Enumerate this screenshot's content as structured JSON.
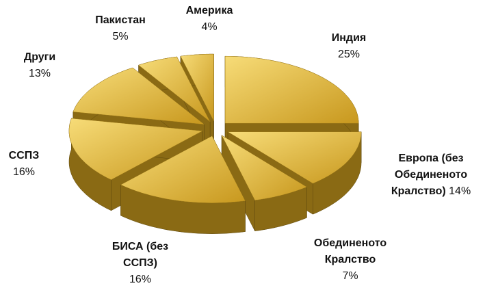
{
  "chart_data": {
    "type": "pie3d",
    "categories": [
      "Индия",
      "Европа (без Обединеното Кралство)",
      "Обединеното Кралство",
      "БИСА (без ССПЗ)",
      "ССПЗ",
      "Други",
      "Пакистан",
      "Америка"
    ],
    "values": [
      25,
      14,
      7,
      16,
      16,
      13,
      5,
      4
    ],
    "value_labels": [
      "25%",
      "14%",
      "7%",
      "16%",
      "16%",
      "13%",
      "5%",
      "4%"
    ],
    "color": "#e6bd45",
    "side_color": "#8a6a14"
  }
}
